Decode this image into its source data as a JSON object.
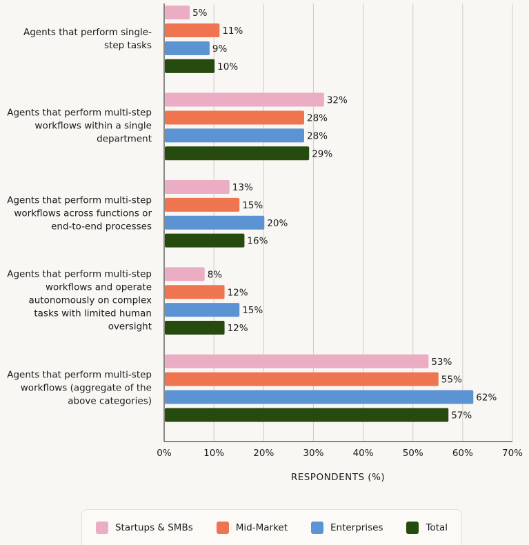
{
  "chart_data": {
    "type": "bar",
    "orientation": "horizontal",
    "x_label": "RESPONDENTS (%)",
    "categories": [
      "Agents that perform single-step tasks",
      "Agents that perform multi-step workflows within a single department",
      "Agents that perform multi-step workflows across functions or end-to-end processes",
      "Agents that perform multi-step workflows and operate autonomously on complex tasks with limited human oversight",
      "Agents that perform multi-step workflows (aggregate of the above categories)"
    ],
    "series": [
      {
        "name": "Startups & SMBs",
        "color": "#ebadc3",
        "values": [
          5,
          32,
          13,
          8,
          53
        ],
        "value_labels": [
          "5%",
          "32%",
          "13%",
          "8%",
          "53%"
        ]
      },
      {
        "name": "Mid-Market",
        "color": "#ef7551",
        "values": [
          11,
          28,
          15,
          12,
          55
        ],
        "value_labels": [
          "11%",
          "28%",
          "15%",
          "12%",
          "55%"
        ]
      },
      {
        "name": "Enterprises",
        "color": "#5b93d3",
        "values": [
          9,
          28,
          20,
          15,
          62
        ],
        "value_labels": [
          "9%",
          "28%",
          "20%",
          "15%",
          "62%"
        ]
      },
      {
        "name": "Total",
        "color": "#274a0f",
        "values": [
          10,
          29,
          16,
          12,
          57
        ],
        "value_labels": [
          "10%",
          "29%",
          "16%",
          "12%",
          "57%"
        ]
      }
    ],
    "xlim": [
      0,
      70
    ],
    "xticks": [
      {
        "value": 0,
        "label": "0%"
      },
      {
        "value": 10,
        "label": "10%"
      },
      {
        "value": 20,
        "label": "20%"
      },
      {
        "value": 30,
        "label": "30%"
      },
      {
        "value": 40,
        "label": "40%"
      },
      {
        "value": 50,
        "label": "50%"
      },
      {
        "value": 60,
        "label": "60%"
      },
      {
        "value": 70,
        "label": "70%"
      }
    ],
    "grid": true,
    "legend": "bottom"
  }
}
